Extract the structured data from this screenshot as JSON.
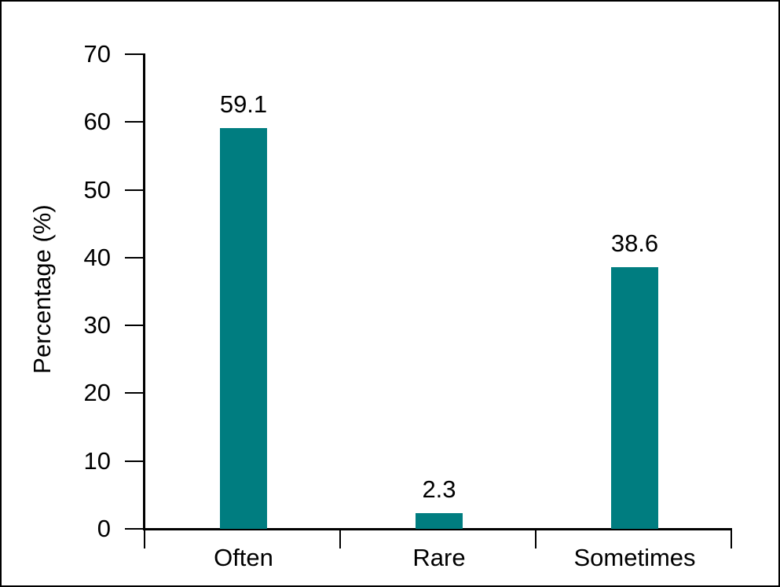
{
  "chart_data": {
    "type": "bar",
    "categories": [
      "Often",
      "Rare",
      "Sometimes"
    ],
    "values": [
      59.1,
      2.3,
      38.6
    ],
    "value_labels": [
      "59.1",
      "2.3",
      "38.6"
    ],
    "title": "",
    "xlabel": "",
    "ylabel": "Percentage (%)",
    "ylim": [
      0,
      70
    ],
    "ytick_step": 10,
    "ytick_labels": [
      "0",
      "10",
      "20",
      "30",
      "40",
      "50",
      "60",
      "70"
    ],
    "grid": false,
    "legend_position": "none",
    "bar_color": "#007d80",
    "axis_color": "#000000",
    "text_color": "#000000",
    "background_color": "#ffffff",
    "figure_border_color": "#000000"
  }
}
